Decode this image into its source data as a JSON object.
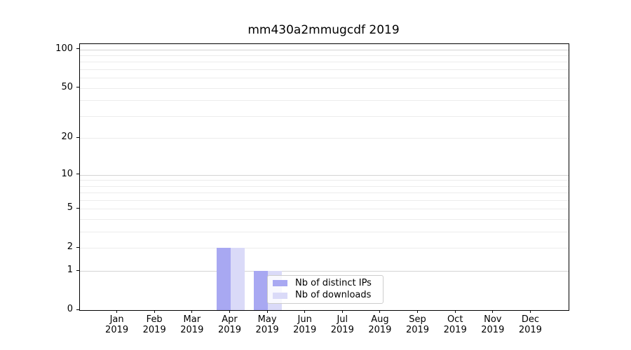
{
  "chart_data": {
    "type": "bar",
    "title": "mm430a2mmugcdf 2019",
    "xlabel": "",
    "ylabel": "",
    "yscale": "log1p",
    "ylim": [
      0,
      110
    ],
    "y_ticks": [
      0,
      1,
      2,
      5,
      10,
      20,
      50,
      100
    ],
    "major_gridlines": [
      1,
      10,
      100
    ],
    "minor_gridlines": [
      2,
      3,
      4,
      5,
      6,
      7,
      8,
      9,
      20,
      30,
      40,
      50,
      60,
      70,
      80,
      90
    ],
    "grid": true,
    "x_ticks": [
      {
        "month": "Jan",
        "year": "2019"
      },
      {
        "month": "Feb",
        "year": "2019"
      },
      {
        "month": "Mar",
        "year": "2019"
      },
      {
        "month": "Apr",
        "year": "2019"
      },
      {
        "month": "May",
        "year": "2019"
      },
      {
        "month": "Jun",
        "year": "2019"
      },
      {
        "month": "Jul",
        "year": "2019"
      },
      {
        "month": "Aug",
        "year": "2019"
      },
      {
        "month": "Sep",
        "year": "2019"
      },
      {
        "month": "Oct",
        "year": "2019"
      },
      {
        "month": "Nov",
        "year": "2019"
      },
      {
        "month": "Dec",
        "year": "2019"
      }
    ],
    "series": [
      {
        "name": "Nb of distinct IPs",
        "color": "#a8a8f2",
        "values": [
          0,
          0,
          0,
          2,
          1,
          0,
          0,
          0,
          0,
          0,
          0,
          0
        ]
      },
      {
        "name": "Nb of downloads",
        "color": "#dadaf8",
        "values": [
          0,
          0,
          0,
          2,
          1,
          0,
          0,
          0,
          0,
          0,
          0,
          0
        ]
      }
    ],
    "legend_position": "lower center"
  },
  "colors": {
    "grid_major": "#d4d4d4",
    "grid_minor": "#ececec",
    "spine": "#000000",
    "text": "#000000",
    "legend_border": "#cccccc",
    "legend_background": "rgba(255,255,255,0.8)"
  }
}
